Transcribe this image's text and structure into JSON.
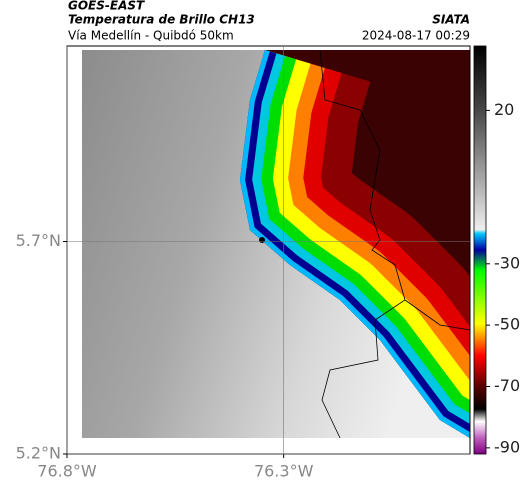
{
  "header": {
    "source": "GOES-EAST",
    "product": "Temperatura de Brillo CH13",
    "route": "Vía Medellín - Quibdó 50km",
    "agency": "SIATA",
    "timestamp": "2024-08-17 00:29"
  },
  "map": {
    "xlim": [
      -76.8,
      -75.87
    ],
    "ylim": [
      5.2,
      6.16
    ],
    "xticks": [
      {
        "value": -76.8,
        "label": "76.8°W"
      },
      {
        "value": -76.3,
        "label": "76.3°W"
      }
    ],
    "yticks": [
      {
        "value": 5.2,
        "label": "5.2°N"
      },
      {
        "value": 5.7,
        "label": "5.7°N"
      }
    ],
    "grid": true
  },
  "colorbar": {
    "lim": [
      41,
      -92
    ],
    "ticks": [
      20,
      -30,
      -50,
      -70,
      -90
    ]
  }
}
